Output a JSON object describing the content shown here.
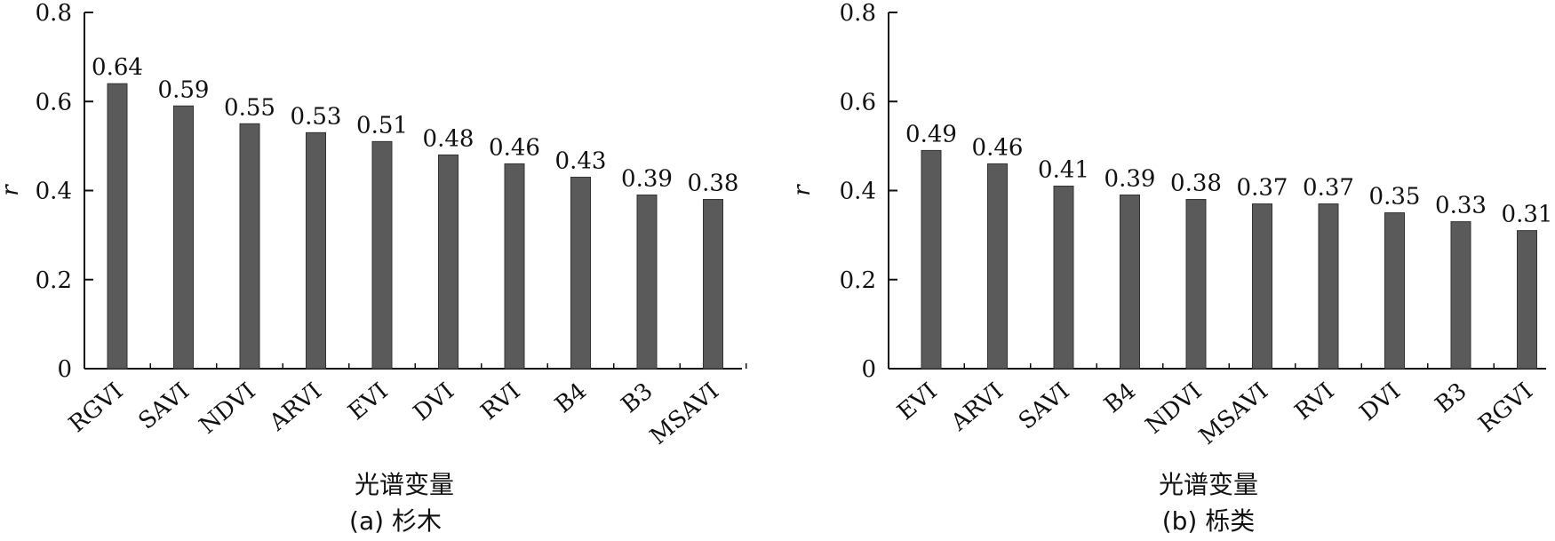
{
  "chart_data": [
    {
      "type": "bar",
      "caption": "(a) 杉木",
      "xlabel": "光谱变量",
      "ylabel": "r",
      "ylim": [
        0,
        0.8
      ],
      "yticks": [
        "0",
        "0.2",
        "0.4",
        "0.6",
        "0.8"
      ],
      "categories": [
        "RGVI",
        "SAVI",
        "NDVI",
        "ARVI",
        "EVI",
        "DVI",
        "RVI",
        "B4",
        "B3",
        "MSAVI"
      ],
      "values": [
        0.64,
        0.59,
        0.55,
        0.53,
        0.51,
        0.48,
        0.46,
        0.43,
        0.39,
        0.38
      ],
      "value_labels": [
        "0.64",
        "0.59",
        "0.55",
        "0.53",
        "0.51",
        "0.48",
        "0.46",
        "0.43",
        "0.39",
        "0.38"
      ],
      "bar_color": "#5a5a5a",
      "grid": false
    },
    {
      "type": "bar",
      "caption": "(b) 栎类",
      "xlabel": "光谱变量",
      "ylabel": "r",
      "ylim": [
        0,
        0.8
      ],
      "yticks": [
        "0",
        "0.2",
        "0.4",
        "0.6",
        "0.8"
      ],
      "categories": [
        "EVI",
        "ARVI",
        "SAVI",
        "B4",
        "NDVI",
        "MSAVI",
        "RVI",
        "DVI",
        "B3",
        "RGVI"
      ],
      "values": [
        0.49,
        0.46,
        0.41,
        0.39,
        0.38,
        0.37,
        0.37,
        0.35,
        0.33,
        0.31
      ],
      "value_labels": [
        "0.49",
        "0.46",
        "0.41",
        "0.39",
        "0.38",
        "0.37",
        "0.37",
        "0.35",
        "0.33",
        "0.31"
      ],
      "bar_color": "#5a5a5a",
      "grid": false
    }
  ]
}
